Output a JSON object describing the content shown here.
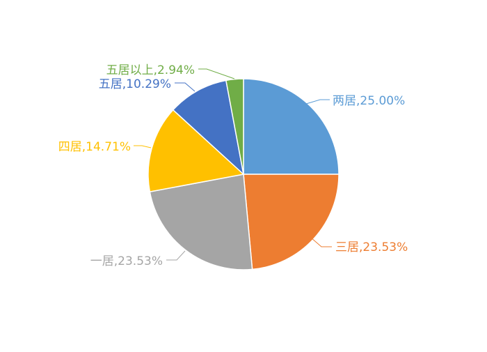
{
  "chart_data": {
    "type": "pie",
    "title": "",
    "slices": [
      {
        "label": "两居",
        "value": 25.0,
        "display": "两居,25.00%",
        "color": "#5B9BD5"
      },
      {
        "label": "三居",
        "value": 23.53,
        "display": "三居,23.53%",
        "color": "#ED7D31"
      },
      {
        "label": "一居",
        "value": 23.53,
        "display": "一居,23.53%",
        "color": "#A5A5A5"
      },
      {
        "label": "四居",
        "value": 14.71,
        "display": "四居,14.71%",
        "color": "#FFC000"
      },
      {
        "label": "五居",
        "value": 10.29,
        "display": "五居,10.29%",
        "color": "#4472C4"
      },
      {
        "label": "五居以上",
        "value": 2.94,
        "display": "五居以上,2.94%",
        "color": "#70AD47"
      }
    ],
    "start_angle": "12 o'clock",
    "direction": "clockwise",
    "legend": "none",
    "data_labels": "outside with leader lines"
  }
}
